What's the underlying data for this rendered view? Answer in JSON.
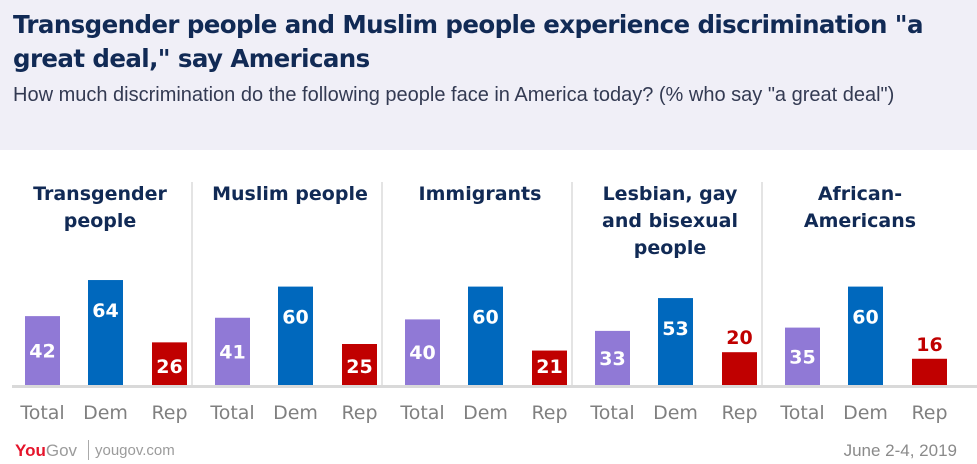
{
  "header": {
    "title": "Transgender people and Muslim people experience discrimination \"a great deal,\" say Americans",
    "subtitle": "How much discrimination do the following people face in America today? (% who say \"a great deal\")"
  },
  "chart_data": {
    "type": "bar",
    "title": "Transgender people and Muslim people experience discrimination \"a great deal,\" say Americans",
    "subtitle": "How much discrimination do the following people face in America today? (% who say \"a great deal\")",
    "xlabel": "",
    "ylabel": "",
    "ylim": [
      0,
      70
    ],
    "grid": false,
    "legend": "none",
    "series_names": [
      "Total",
      "Dem",
      "Rep"
    ],
    "colors": {
      "Total": "#9079d6",
      "Dem": "#0068bd",
      "Rep": "#c00000"
    },
    "groups": [
      {
        "label": [
          "Transgender",
          "people"
        ],
        "values": [
          42,
          64,
          26
        ]
      },
      {
        "label": [
          "Muslim people"
        ],
        "values": [
          41,
          60,
          25
        ]
      },
      {
        "label": [
          "Immigrants"
        ],
        "values": [
          40,
          60,
          21
        ]
      },
      {
        "label": [
          "Lesbian, gay",
          "and bisexual",
          "people"
        ],
        "values": [
          33,
          53,
          20
        ]
      },
      {
        "label": [
          "African-",
          "Americans"
        ],
        "values": [
          35,
          60,
          16
        ]
      }
    ]
  },
  "footer": {
    "logo_you": "You",
    "logo_gov": "Gov",
    "url": "yougov.com",
    "date": "June 2-4, 2019"
  }
}
